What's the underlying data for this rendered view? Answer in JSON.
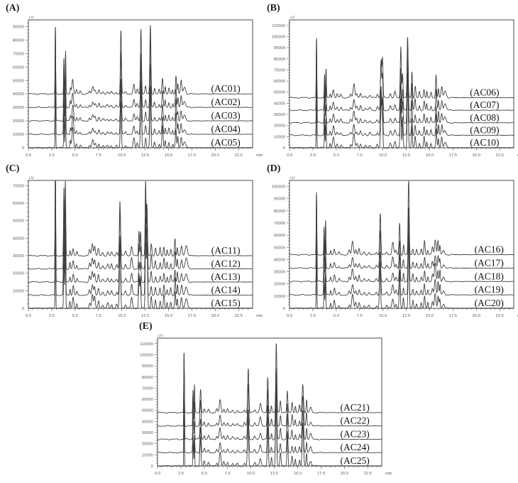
{
  "figure": {
    "background": "#ffffff",
    "frame_color": "#8c8c8c",
    "trace_color": "#3f3f3f",
    "tick_color": "#666666",
    "tick_label_color": "#5a5a5a",
    "trace_label_color": "#111111",
    "y_axis_unit": "uV",
    "x_axis_unit": "min"
  },
  "chart_data": [
    {
      "type": "line",
      "panel": "(A)",
      "traces": [
        "(AC01)",
        "(AC02)",
        "(AC03)",
        "(AC04)",
        "(AC05)"
      ],
      "baselines": [
        40000,
        30000,
        20000,
        10000,
        0
      ],
      "trace_scale": [
        1.0,
        0.92,
        0.88,
        0.9,
        1.0
      ],
      "xlim": [
        0,
        24
      ],
      "ylim": [
        0,
        95000
      ],
      "x_ticks": [
        0,
        2.5,
        5,
        7.5,
        10,
        12.5,
        15,
        17.5,
        20,
        22.5
      ],
      "x_tick_labels": [
        "0.0",
        "2.5",
        "5.0",
        "7.5",
        "10.0",
        "12.5",
        "15.0",
        "17.5",
        "20.0",
        "22.5"
      ],
      "y_ticks": [
        10000,
        20000,
        30000,
        40000,
        50000,
        60000,
        70000,
        80000,
        90000
      ],
      "x_axis_unit": "min",
      "y_axis_unit": "uV",
      "label_x_frac": 0.88,
      "peaks": [
        [
          2.9,
          60000,
          0.03
        ],
        [
          3.8,
          30000,
          0.035
        ],
        [
          3.97,
          27000,
          0.035
        ],
        [
          4.5,
          5000,
          0.05
        ],
        [
          4.75,
          13500,
          0.08
        ],
        [
          5.15,
          3000,
          0.06
        ],
        [
          5.55,
          2200,
          0.07
        ],
        [
          6.55,
          2000,
          0.07
        ],
        [
          6.9,
          5500,
          0.09
        ],
        [
          7.15,
          3200,
          0.07
        ],
        [
          7.55,
          3500,
          0.07
        ],
        [
          8.0,
          1500,
          0.08
        ],
        [
          8.45,
          1800,
          0.09
        ],
        [
          8.85,
          1500,
          0.08
        ],
        [
          9.4,
          1500,
          0.07
        ],
        [
          9.9,
          41000,
          0.055
        ],
        [
          10.4,
          2000,
          0.08
        ],
        [
          11.3,
          7500,
          0.08
        ],
        [
          11.65,
          3500,
          0.07
        ],
        [
          12.05,
          44000,
          0.055
        ],
        [
          12.55,
          7000,
          0.06
        ],
        [
          13.05,
          48000,
          0.055
        ],
        [
          13.5,
          3500,
          0.06
        ],
        [
          14.0,
          3000,
          0.06
        ],
        [
          14.35,
          14500,
          0.06
        ],
        [
          14.65,
          6000,
          0.05
        ],
        [
          15.05,
          4500,
          0.06
        ],
        [
          15.45,
          3000,
          0.05
        ],
        [
          15.8,
          16000,
          0.055
        ],
        [
          16.0,
          9000,
          0.05
        ],
        [
          16.35,
          9500,
          0.07
        ],
        [
          16.7,
          4500,
          0.12
        ]
      ]
    },
    {
      "type": "line",
      "panel": "(B)",
      "traces": [
        "(AC06)",
        "(AC07)",
        "(AC08)",
        "(AC09)",
        "(AC10)"
      ],
      "baselines": [
        45000,
        33750,
        22500,
        11250,
        0
      ],
      "trace_scale": [
        1.0,
        0.95,
        0.9,
        0.85,
        0.95
      ],
      "xlim": [
        0,
        24
      ],
      "ylim": [
        0,
        115000
      ],
      "x_ticks": [
        0,
        2.5,
        5,
        7.5,
        10,
        12.5,
        15,
        17.5,
        20,
        22.5
      ],
      "x_tick_labels": [
        "0.0",
        "2.5",
        "5.0",
        "7.5",
        "10.0",
        "12.5",
        "15.0",
        "17.5",
        "20.0",
        "22.5"
      ],
      "y_ticks": [
        10000,
        20000,
        30000,
        40000,
        50000,
        60000,
        70000,
        80000,
        90000,
        100000,
        110000
      ],
      "x_axis_unit": "min",
      "y_axis_unit": "uV",
      "label_x_frac": 0.87,
      "peaks": [
        [
          2.9,
          63000,
          0.03
        ],
        [
          3.75,
          24000,
          0.035
        ],
        [
          3.9,
          22000,
          0.035
        ],
        [
          4.35,
          4000,
          0.05
        ],
        [
          4.7,
          9000,
          0.08
        ],
        [
          5.1,
          3500,
          0.07
        ],
        [
          5.5,
          3000,
          0.08
        ],
        [
          6.55,
          3000,
          0.07
        ],
        [
          6.9,
          12500,
          0.09
        ],
        [
          7.2,
          4000,
          0.07
        ],
        [
          7.6,
          4500,
          0.07
        ],
        [
          8.1,
          2000,
          0.08
        ],
        [
          8.6,
          2500,
          0.09
        ],
        [
          9.4,
          3000,
          0.07
        ],
        [
          9.8,
          40000,
          0.06
        ],
        [
          9.95,
          30000,
          0.05
        ],
        [
          10.8,
          4500,
          0.08
        ],
        [
          11.3,
          6000,
          0.08
        ],
        [
          11.9,
          44000,
          0.055
        ],
        [
          12.1,
          20000,
          0.05
        ],
        [
          12.65,
          66000,
          0.055
        ],
        [
          13.1,
          22000,
          0.05
        ],
        [
          13.45,
          9000,
          0.06
        ],
        [
          13.9,
          5000,
          0.06
        ],
        [
          14.4,
          9500,
          0.06
        ],
        [
          14.7,
          6500,
          0.05
        ],
        [
          15.15,
          5000,
          0.06
        ],
        [
          15.7,
          19000,
          0.055
        ],
        [
          15.95,
          10000,
          0.05
        ],
        [
          16.3,
          11000,
          0.07
        ],
        [
          16.65,
          6000,
          0.12
        ]
      ]
    },
    {
      "type": "line",
      "panel": "(C)",
      "traces": [
        "(AC11)",
        "(AC12)",
        "(AC13)",
        "(AC14)",
        "(AC15)"
      ],
      "baselines": [
        30000,
        22500,
        15000,
        7500,
        0
      ],
      "trace_scale": [
        0.95,
        1.0,
        0.85,
        0.9,
        1.05
      ],
      "xlim": [
        0,
        24
      ],
      "ylim": [
        0,
        73000
      ],
      "x_ticks": [
        0,
        2.5,
        5,
        7.5,
        10,
        12.5,
        15,
        17.5,
        20,
        22.5
      ],
      "x_tick_labels": [
        "0.0",
        "2.5",
        "5.0",
        "7.5",
        "10.0",
        "12.5",
        "15.0",
        "17.5",
        "20.0",
        "22.5"
      ],
      "y_ticks": [
        10000,
        20000,
        30000,
        40000,
        50000,
        60000,
        70000
      ],
      "x_axis_unit": "min",
      "y_axis_unit": "uV",
      "label_x_frac": 0.88,
      "peaks": [
        [
          2.9,
          60000,
          0.03
        ],
        [
          3.8,
          40000,
          0.04
        ],
        [
          3.95,
          38000,
          0.04
        ],
        [
          4.45,
          3500,
          0.05
        ],
        [
          4.8,
          5500,
          0.07
        ],
        [
          5.2,
          2500,
          0.06
        ],
        [
          6.55,
          3500,
          0.07
        ],
        [
          6.85,
          6500,
          0.08
        ],
        [
          7.1,
          6000,
          0.07
        ],
        [
          7.5,
          4500,
          0.07
        ],
        [
          7.95,
          2000,
          0.08
        ],
        [
          8.5,
          2500,
          0.08
        ],
        [
          8.9,
          2500,
          0.07
        ],
        [
          9.45,
          2000,
          0.07
        ],
        [
          9.8,
          33000,
          0.06
        ],
        [
          10.4,
          2500,
          0.08
        ],
        [
          11.05,
          6500,
          0.08
        ],
        [
          11.85,
          16000,
          0.05
        ],
        [
          12.0,
          14000,
          0.05
        ],
        [
          12.55,
          40000,
          0.05
        ],
        [
          12.7,
          36000,
          0.05
        ],
        [
          13.15,
          7000,
          0.06
        ],
        [
          13.6,
          4000,
          0.06
        ],
        [
          14.1,
          4500,
          0.06
        ],
        [
          14.5,
          6500,
          0.06
        ],
        [
          14.85,
          4000,
          0.05
        ],
        [
          15.25,
          4000,
          0.06
        ],
        [
          15.7,
          9500,
          0.055
        ],
        [
          15.95,
          6000,
          0.05
        ],
        [
          16.4,
          6500,
          0.08
        ],
        [
          16.9,
          6000,
          0.12
        ]
      ]
    },
    {
      "type": "line",
      "panel": "(D)",
      "traces": [
        "(AC16)",
        "(AC17)",
        "(AC18)",
        "(AC19)",
        "(AC20)"
      ],
      "baselines": [
        44000,
        33000,
        22000,
        11000,
        0
      ],
      "trace_scale": [
        1.0,
        0.9,
        0.95,
        0.85,
        1.0
      ],
      "xlim": [
        0,
        24
      ],
      "ylim": [
        0,
        105000
      ],
      "x_ticks": [
        0,
        2.5,
        5,
        7.5,
        10,
        12.5,
        15,
        17.5,
        20,
        22.5
      ],
      "x_tick_labels": [
        "0.0",
        "2.5",
        "5.0",
        "7.5",
        "10.0",
        "12.5",
        "15.0",
        "17.5",
        "20.0",
        "22.5"
      ],
      "y_ticks": [
        10000,
        20000,
        30000,
        40000,
        50000,
        60000,
        70000,
        80000,
        90000,
        100000
      ],
      "x_axis_unit": "min",
      "y_axis_unit": "uV",
      "label_x_frac": 0.89,
      "peaks": [
        [
          2.9,
          62000,
          0.03
        ],
        [
          3.7,
          26000,
          0.035
        ],
        [
          3.85,
          24000,
          0.035
        ],
        [
          4.4,
          4000,
          0.05
        ],
        [
          4.8,
          6000,
          0.07
        ],
        [
          5.3,
          2500,
          0.07
        ],
        [
          6.4,
          3500,
          0.07
        ],
        [
          6.75,
          10000,
          0.09
        ],
        [
          7.1,
          4500,
          0.07
        ],
        [
          7.45,
          5000,
          0.07
        ],
        [
          8.0,
          2500,
          0.08
        ],
        [
          8.5,
          2000,
          0.08
        ],
        [
          9.3,
          2500,
          0.07
        ],
        [
          9.7,
          30000,
          0.06
        ],
        [
          10.4,
          2500,
          0.08
        ],
        [
          11.05,
          9000,
          0.09
        ],
        [
          11.4,
          4000,
          0.07
        ],
        [
          11.8,
          28000,
          0.055
        ],
        [
          12.2,
          8000,
          0.05
        ],
        [
          12.75,
          57000,
          0.055
        ],
        [
          13.2,
          6000,
          0.06
        ],
        [
          13.6,
          4000,
          0.06
        ],
        [
          14.1,
          4000,
          0.06
        ],
        [
          14.45,
          11000,
          0.06
        ],
        [
          14.8,
          4500,
          0.05
        ],
        [
          15.3,
          7000,
          0.07
        ],
        [
          15.6,
          13500,
          0.08
        ],
        [
          15.9,
          11000,
          0.06
        ],
        [
          16.1,
          9000,
          0.05
        ],
        [
          16.5,
          4000,
          0.1
        ]
      ]
    },
    {
      "type": "line",
      "panel": "(E)",
      "traces": [
        "(AC21)",
        "(AC22)",
        "(AC23)",
        "(AC24)",
        "(AC25)"
      ],
      "baselines": [
        48000,
        36000,
        24000,
        12000,
        0
      ],
      "trace_scale": [
        1.0,
        0.95,
        0.9,
        0.85,
        1.05
      ],
      "xlim": [
        0,
        24
      ],
      "ylim": [
        0,
        115000
      ],
      "x_ticks": [
        0,
        2.5,
        5,
        7.5,
        10,
        12.5,
        15,
        17.5,
        20,
        22.5
      ],
      "x_tick_labels": [
        "0.0",
        "2.5",
        "5.0",
        "7.5",
        "10.0",
        "12.5",
        "15.0",
        "17.5",
        "20.0",
        "22.5"
      ],
      "y_ticks": [
        10000,
        20000,
        30000,
        40000,
        50000,
        60000,
        70000,
        80000,
        90000,
        100000,
        110000
      ],
      "x_axis_unit": "min",
      "y_axis_unit": "uV",
      "label_x_frac": 0.88,
      "peaks": [
        [
          2.85,
          64000,
          0.03
        ],
        [
          3.8,
          23000,
          0.035
        ],
        [
          3.95,
          21000,
          0.035
        ],
        [
          4.6,
          23000,
          0.06
        ],
        [
          5.0,
          4000,
          0.06
        ],
        [
          5.45,
          3500,
          0.07
        ],
        [
          6.35,
          3000,
          0.07
        ],
        [
          6.7,
          10500,
          0.08
        ],
        [
          7.1,
          3500,
          0.07
        ],
        [
          7.5,
          3500,
          0.07
        ],
        [
          8.05,
          2500,
          0.08
        ],
        [
          8.55,
          2000,
          0.08
        ],
        [
          9.3,
          3000,
          0.07
        ],
        [
          9.7,
          35000,
          0.06
        ],
        [
          10.4,
          3000,
          0.08
        ],
        [
          11.0,
          7500,
          0.09
        ],
        [
          11.8,
          36000,
          0.055
        ],
        [
          12.2,
          7000,
          0.05
        ],
        [
          12.7,
          60000,
          0.055
        ],
        [
          13.15,
          10000,
          0.06
        ],
        [
          13.9,
          23000,
          0.055
        ],
        [
          14.4,
          9000,
          0.06
        ],
        [
          14.75,
          5000,
          0.05
        ],
        [
          15.2,
          6000,
          0.06
        ],
        [
          15.55,
          31000,
          0.07
        ],
        [
          15.95,
          13000,
          0.05
        ],
        [
          16.4,
          5000,
          0.1
        ]
      ]
    }
  ]
}
